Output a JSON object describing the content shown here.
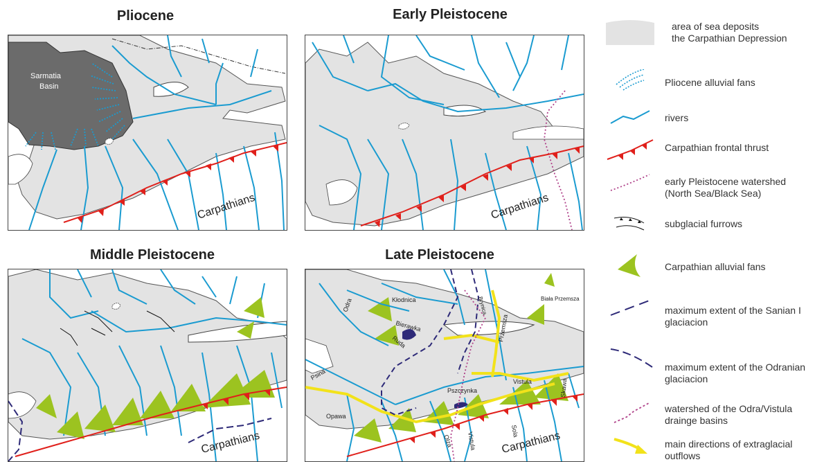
{
  "panels": {
    "pliocene": {
      "title": "Pliocene",
      "basin_label_1": "Sarmatia",
      "basin_label_2": "Basin",
      "mountain_label": "Carpathians"
    },
    "early": {
      "title": "Early Pleistocene",
      "mountain_label": "Carpathians"
    },
    "middle": {
      "title": "Middle Pleistocene",
      "mountain_label": "Carpathians"
    },
    "late": {
      "title": "Late Pleistocene",
      "mountain_label": "Carpathians",
      "river_names": {
        "klodnica": "Kłodnica",
        "odra": "Odra",
        "bierawka": "Bierawka",
        "ruda": "Ruda",
        "psina": "Psina",
        "pszczynka": "Pszczynka",
        "vistula": "Vistula",
        "opawa": "Opawa",
        "olza": "Olza",
        "vistula_small": "Vistula",
        "sola": "Sola",
        "skawa": "Skawa",
        "brynica": "Brynica",
        "przemsza": "Przemsza",
        "biala_przemsza": "Biała Przemsza"
      }
    }
  },
  "legend": [
    {
      "symbol": "sea-deposits-swatch-icon",
      "text": "area of sea deposits\nthe Carpathian Depression"
    },
    {
      "symbol": "alluvial-fan-dotted-icon",
      "text": "Pliocene alluvial fans"
    },
    {
      "symbol": "river-line-icon",
      "text": "rivers"
    },
    {
      "symbol": "thrust-line-icon",
      "text": "Carpathian frontal thrust"
    },
    {
      "symbol": "watershed-dotted-icon",
      "text": "early Pleistocene watershed\n(North Sea/Black Sea)"
    },
    {
      "symbol": "subglacial-furrow-icon",
      "text": "subglacial furrows"
    },
    {
      "symbol": "carpathian-fan-icon",
      "text": "Carpathian alluvial fans"
    },
    {
      "symbol": "sanian-dash-icon",
      "text": "maximum extent of the Sanian I\nglaciacion"
    },
    {
      "symbol": "odranian-dash-icon",
      "text": "maximum extent of the Odranian\nglaciacion"
    },
    {
      "symbol": "odra-vistula-watershed-icon",
      "text": "watershed of the Odra/Vistula\n        drainge basins"
    },
    {
      "symbol": "outflow-line-icon",
      "text": "main directions of extraglacial\noutflows"
    }
  ],
  "colors": {
    "sea_deposits": "#e3e3e3",
    "basin": "#6b6b6b",
    "river": "#1a9bd0",
    "thrust": "#e0201b",
    "watershed": "#b0428a",
    "fan": "#9cc320",
    "glacial_dash": "#2e2a78",
    "outflow": "#f2e21a"
  }
}
